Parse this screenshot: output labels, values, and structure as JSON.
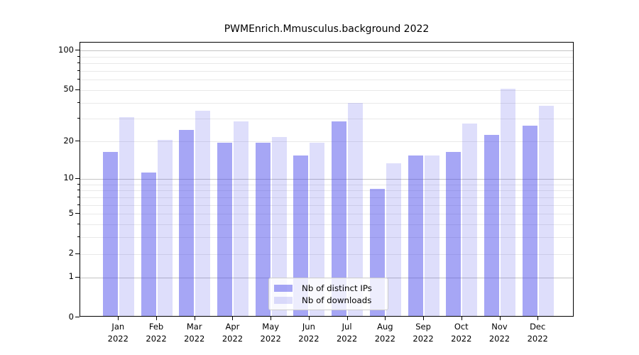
{
  "chart_data": {
    "type": "bar",
    "title": "PWMEnrich.Mmusculus.background 2022",
    "x_months": [
      "Jan",
      "Feb",
      "Mar",
      "Apr",
      "May",
      "Jun",
      "Jul",
      "Aug",
      "Sep",
      "Oct",
      "Nov",
      "Dec"
    ],
    "x_year": "2022",
    "series": [
      {
        "name": "Nb of distinct IPs",
        "values": [
          16,
          11,
          24,
          19,
          19,
          15,
          28,
          8,
          15,
          16,
          22,
          26
        ],
        "color": "rgba(70,70,235,0.48)"
      },
      {
        "name": "Nb of downloads",
        "values": [
          30,
          20,
          34,
          28,
          21,
          19,
          39,
          13,
          15,
          27,
          50,
          37
        ],
        "color": "rgba(70,70,235,0.18)"
      }
    ],
    "yscale": "log10(1+y)",
    "ylim": [
      0,
      115
    ],
    "ytick_labels": [
      100,
      50,
      20,
      10,
      5,
      2,
      1,
      0
    ],
    "major_gridlines": [
      1,
      10,
      100
    ],
    "minor_gridlines": [
      2,
      3,
      4,
      5,
      6,
      7,
      8,
      9,
      20,
      30,
      40,
      50,
      60,
      70,
      80,
      90
    ],
    "grid": true,
    "legend_position": "bottom-center",
    "colors": {
      "bar_base": "#4646eb",
      "grid_major": "#c4c4c4",
      "grid_minor": "#e9e9e9",
      "background": "#ffffff"
    }
  }
}
